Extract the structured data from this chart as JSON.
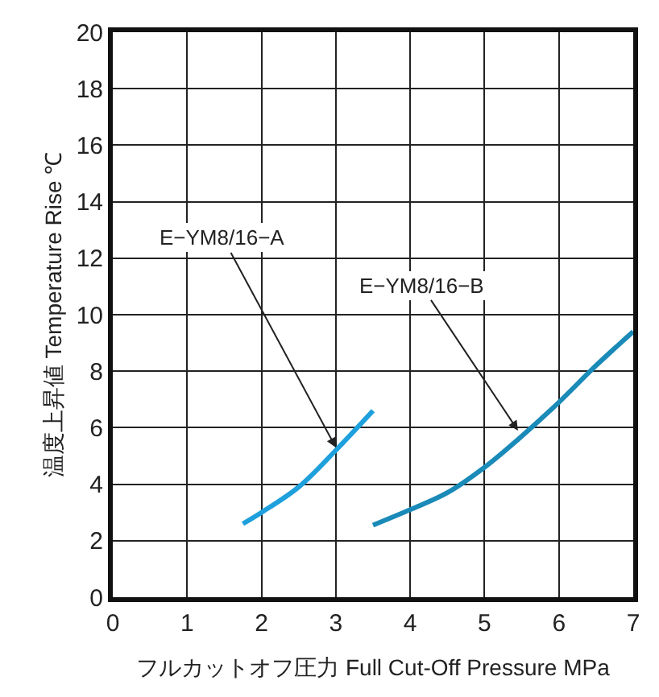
{
  "chart_data": {
    "type": "line",
    "xlabel": "フルカットオフ圧力 Full Cut-Off Pressure MPa",
    "ylabel": "温度上昇値 Temperature Rise ℃",
    "series": [
      {
        "color": "#1ea0dc",
        "x": [
          1.75,
          2,
          2.5,
          3,
          3.5
        ],
        "values": [
          2.6,
          3.0,
          3.9,
          5.2,
          6.6
        ]
      },
      {
        "color": "#1a8ab8",
        "x": [
          3.5,
          4,
          4.5,
          5,
          5.5,
          6,
          6.5,
          7
        ],
        "values": [
          2.55,
          3.1,
          3.7,
          4.6,
          5.7,
          6.9,
          8.2,
          9.4
        ]
      }
    ],
    "annotations": [
      {
        "text": "E−YM8/16−A",
        "x": 3.0,
        "y": 5.3
      },
      {
        "text": "E−YM8/16−B",
        "x": 5.45,
        "y": 5.9
      }
    ],
    "xlim": [
      0,
      7
    ],
    "xticks": [
      0,
      1,
      2,
      3,
      4,
      5,
      6,
      7
    ],
    "ylim": [
      0,
      20
    ],
    "yticks": [
      0,
      2,
      4,
      6,
      8,
      10,
      12,
      14,
      16,
      18,
      20
    ],
    "grid": true,
    "marker": "none",
    "line_style": "solid"
  }
}
